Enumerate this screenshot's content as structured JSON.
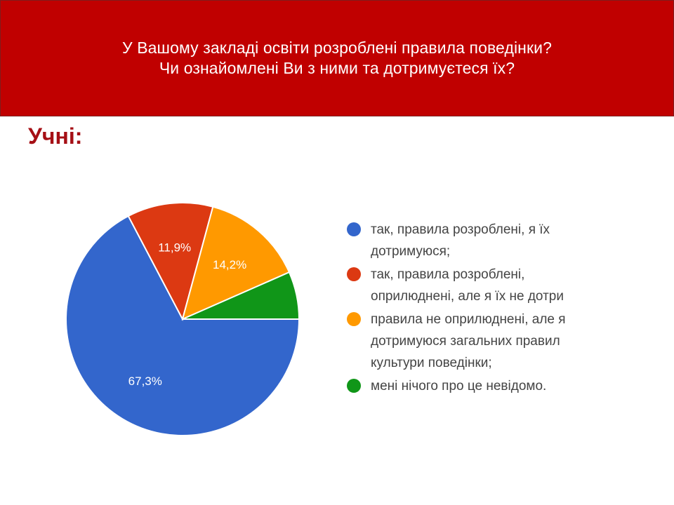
{
  "header": {
    "line1": "У Вашому закладі освіти розроблені правила поведінки?",
    "line2": "Чи ознайомлені Ви з ними та дотримуєтеся їх?"
  },
  "section_label": "Учні:",
  "colors": {
    "header_bg": "#c00000",
    "section_label": "#a50f15"
  },
  "chart_data": {
    "type": "pie",
    "title": "",
    "legend_position": "right",
    "slices": [
      {
        "name": "так, правила розроблені, я їх\nдотримуюся;",
        "value": 67.3,
        "label": "67,3%",
        "color": "#3366cc"
      },
      {
        "name": "так, правила розроблені,\nоприлюднені, але я їх не дотри",
        "value": 11.9,
        "label": "11,9%",
        "color": "#dc3912"
      },
      {
        "name": "правила не оприлюднені, але я\nдотримуюся загальних правил\nкультури поведінки;",
        "value": 14.2,
        "label": "14,2%",
        "color": "#ff9900"
      },
      {
        "name": "мені нічого про це невідомо.",
        "value": 6.6,
        "label": "",
        "color": "#109618"
      }
    ]
  }
}
